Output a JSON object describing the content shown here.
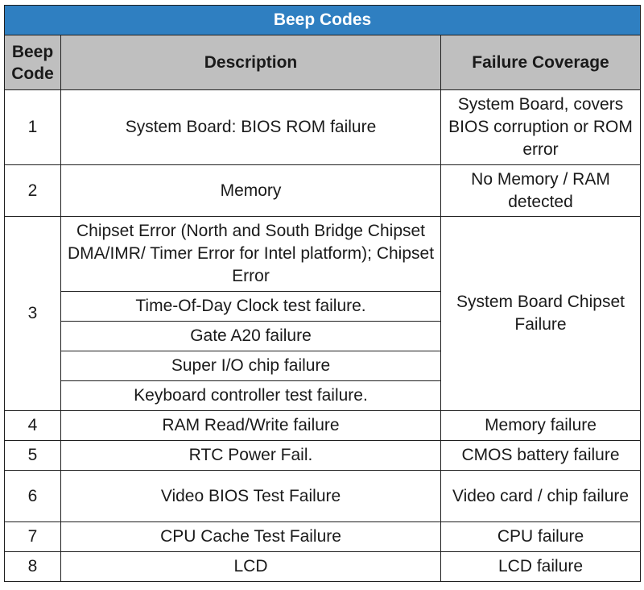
{
  "table": {
    "title": "Beep Codes",
    "headers": {
      "code": "Beep Code",
      "description": "Description",
      "coverage": "Failure Coverage"
    },
    "rows": [
      {
        "code": "1",
        "description": "System Board: BIOS ROM failure",
        "coverage": "System Board, covers BIOS corruption or ROM error"
      },
      {
        "code": "2",
        "description": "Memory",
        "coverage": "No Memory / RAM detected"
      },
      {
        "code": "3",
        "descriptions": [
          "Chipset Error (North and South Bridge Chipset DMA/IMR/ Timer Error for Intel platform); Chipset Error",
          "Time-Of-Day Clock test failure.",
          "Gate A20 failure",
          "Super I/O chip failure",
          "Keyboard controller test failure."
        ],
        "coverage": "System Board Chipset Failure"
      },
      {
        "code": "4",
        "description": "RAM Read/Write failure",
        "coverage": "Memory failure"
      },
      {
        "code": "5",
        "description": "RTC Power Fail.",
        "coverage": "CMOS battery failure"
      },
      {
        "code": "6",
        "description": "Video BIOS Test Failure",
        "coverage": "Video card / chip failure"
      },
      {
        "code": "7",
        "description": "CPU Cache Test Failure",
        "coverage": "CPU failure"
      },
      {
        "code": "8",
        "description": "LCD",
        "coverage": "LCD failure"
      }
    ]
  },
  "colors": {
    "title_background": "#2f7fc1",
    "header_background": "#bfbfbf",
    "border": "#1f1f1f"
  }
}
